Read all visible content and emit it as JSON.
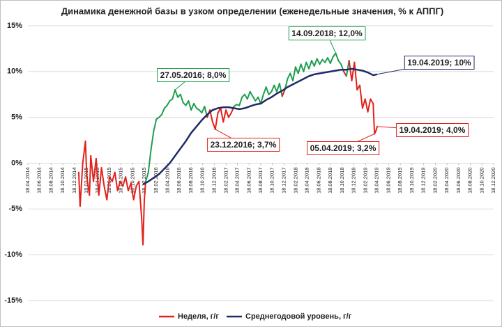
{
  "chart_data": {
    "type": "line",
    "title": "Динамика денежной базы в узком определении (еженедельные значения, % к АППГ)",
    "xlim": [
      "18.04.2014",
      "18.12.2020"
    ],
    "xticks": [
      "18.04.2014",
      "18.06.2014",
      "18.08.2014",
      "18.10.2014",
      "18.12.2014",
      "18.02.2015",
      "18.04.2015",
      "18.06.2015",
      "18.08.2015",
      "18.10.2015",
      "18.12.2015",
      "18.02.2016",
      "18.04.2016",
      "18.06.2016",
      "18.08.2016",
      "18.10.2016",
      "18.12.2016",
      "18.02.2017",
      "18.04.2017",
      "18.06.2017",
      "18.08.2017",
      "18.10.2017",
      "18.12.2017",
      "18.02.2018",
      "18.04.2018",
      "18.06.2018",
      "18.08.2018",
      "18.10.2018",
      "18.12.2018",
      "18.02.2019",
      "18.04.2019",
      "18.06.2019",
      "18.08.2019",
      "18.10.2019",
      "18.12.2019",
      "18.02.2020",
      "18.04.2020",
      "18.06.2020",
      "18.08.2020",
      "18.10.2020",
      "18.12.2020"
    ],
    "ylim": [
      -15,
      15
    ],
    "yticks": [
      {
        "value": -15,
        "label": "-15%"
      },
      {
        "value": -10,
        "label": "-10%"
      },
      {
        "value": -5,
        "label": "-5%"
      },
      {
        "value": 0,
        "label": "0%"
      },
      {
        "value": 5,
        "label": "5%"
      },
      {
        "value": 10,
        "label": "10%"
      },
      {
        "value": 15,
        "label": "15%"
      }
    ],
    "grid": true,
    "legend": "bottom",
    "series": [
      {
        "name": "Неделя, г/г",
        "color": "#e3211c",
        "above_average_color": "#1d9e4e",
        "x": [
          "09.01.2015",
          "16.01.2015",
          "30.01.2015",
          "13.02.2015",
          "20.02.2015",
          "06.03.2015",
          "13.03.2015",
          "27.03.2015",
          "10.04.2015",
          "24.04.2015",
          "08.05.2015",
          "22.05.2015",
          "05.06.2015",
          "19.06.2015",
          "03.07.2015",
          "17.07.2015",
          "31.07.2015",
          "14.08.2015",
          "28.08.2015",
          "11.09.2015",
          "25.09.2015",
          "09.10.2015",
          "23.10.2015",
          "06.11.2015",
          "20.11.2015",
          "04.12.2015",
          "11.12.2015",
          "18.12.2015",
          "25.12.2015",
          "08.01.2016",
          "22.01.2016",
          "05.02.2016",
          "19.02.2016",
          "04.03.2016",
          "18.03.2016",
          "01.04.2016",
          "15.04.2016",
          "29.04.2016",
          "13.05.2016",
          "27.05.2016",
          "10.06.2016",
          "24.06.2016",
          "08.07.2016",
          "22.07.2016",
          "05.08.2016",
          "19.08.2016",
          "02.09.2016",
          "16.09.2016",
          "30.09.2016",
          "14.10.2016",
          "28.10.2016",
          "11.11.2016",
          "25.11.2016",
          "09.12.2016",
          "23.12.2016",
          "06.01.2017",
          "20.01.2017",
          "03.02.2017",
          "17.02.2017",
          "03.03.2017",
          "17.03.2017",
          "31.03.2017",
          "14.04.2017",
          "28.04.2017",
          "12.05.2017",
          "26.05.2017",
          "09.06.2017",
          "23.06.2017",
          "07.07.2017",
          "21.07.2017",
          "04.08.2017",
          "18.08.2017",
          "01.09.2017",
          "15.09.2017",
          "29.09.2017",
          "13.10.2017",
          "27.10.2017",
          "10.11.2017",
          "24.11.2017",
          "08.12.2017",
          "22.12.2017",
          "05.01.2018",
          "19.01.2018",
          "02.02.2018",
          "16.02.2018",
          "02.03.2018",
          "16.03.2018",
          "30.03.2018",
          "13.04.2018",
          "27.04.2018",
          "11.05.2018",
          "25.05.2018",
          "08.06.2018",
          "22.06.2018",
          "06.07.2018",
          "20.07.2018",
          "03.08.2018",
          "17.08.2018",
          "31.08.2018",
          "14.09.2018",
          "28.09.2018",
          "12.10.2018",
          "26.10.2018",
          "09.11.2018",
          "23.11.2018",
          "07.12.2018",
          "21.12.2018",
          "04.01.2019",
          "18.01.2019",
          "01.02.2019",
          "15.02.2019",
          "01.03.2019",
          "15.03.2019",
          "29.03.2019",
          "05.04.2019",
          "12.04.2019",
          "19.04.2019"
        ],
        "values": [
          -1.0,
          -4.7,
          0.0,
          2.4,
          -1.5,
          -3.5,
          0.8,
          -2.0,
          0.5,
          -3.5,
          -0.5,
          -2.5,
          -4.0,
          -1.5,
          -2.0,
          -1.0,
          -3.0,
          -2.0,
          -2.5,
          -1.5,
          -3.0,
          -2.2,
          -4.0,
          -2.5,
          -2.0,
          -6.0,
          -8.9,
          -4.0,
          -2.0,
          -1.0,
          1.5,
          3.5,
          4.8,
          5.0,
          5.3,
          6.0,
          6.3,
          6.8,
          7.0,
          8.0,
          7.2,
          7.5,
          6.6,
          6.3,
          6.8,
          5.8,
          6.5,
          6.0,
          5.8,
          5.5,
          6.2,
          5.0,
          5.8,
          4.5,
          3.7,
          5.5,
          6.0,
          4.5,
          5.8,
          5.0,
          5.5,
          6.2,
          6.4,
          6.3,
          7.2,
          7.5,
          7.0,
          7.8,
          7.3,
          6.8,
          7.2,
          6.5,
          7.5,
          8.3,
          7.5,
          7.8,
          8.5,
          7.8,
          8.7,
          7.3,
          8.0,
          9.2,
          9.8,
          9.0,
          10.5,
          9.8,
          10.8,
          10.0,
          11.0,
          10.3,
          11.2,
          10.6,
          11.4,
          10.8,
          11.3,
          11.0,
          11.5,
          10.9,
          11.6,
          12.0,
          11.2,
          10.8,
          10.0,
          9.5,
          11.2,
          9.0,
          11.0,
          8.0,
          8.5,
          6.0,
          7.0,
          5.6,
          7.0,
          6.5,
          3.2,
          3.5,
          4.0
        ]
      },
      {
        "name": "Среднегодовой уровень, г/г",
        "color": "#1f2a66",
        "x": [
          "11.12.2015",
          "08.01.2016",
          "05.02.2016",
          "04.03.2016",
          "01.04.2016",
          "29.04.2016",
          "27.05.2016",
          "24.06.2016",
          "22.07.2016",
          "19.08.2016",
          "16.09.2016",
          "14.10.2016",
          "11.11.2016",
          "09.12.2016",
          "06.01.2017",
          "03.02.2017",
          "03.03.2017",
          "31.03.2017",
          "28.04.2017",
          "26.05.2017",
          "23.06.2017",
          "21.07.2017",
          "18.08.2017",
          "15.09.2017",
          "13.10.2017",
          "10.11.2017",
          "08.12.2017",
          "05.01.2018",
          "02.02.2018",
          "02.03.2018",
          "30.03.2018",
          "27.04.2018",
          "25.05.2018",
          "22.06.2018",
          "20.07.2018",
          "17.08.2018",
          "14.09.2018",
          "12.10.2018",
          "09.11.2018",
          "07.12.2018",
          "04.01.2019",
          "01.02.2019",
          "01.03.2019",
          "29.03.2019",
          "19.04.2019"
        ],
        "values": [
          -2.3,
          -2.0,
          -1.6,
          -1.2,
          -0.6,
          0.0,
          0.8,
          1.6,
          2.4,
          3.3,
          4.0,
          4.7,
          5.3,
          5.8,
          6.0,
          6.1,
          6.1,
          6.0,
          5.9,
          6.0,
          6.2,
          6.4,
          6.5,
          6.9,
          7.2,
          7.6,
          7.9,
          8.3,
          8.6,
          8.9,
          9.2,
          9.5,
          9.7,
          9.8,
          9.9,
          10.0,
          10.1,
          10.2,
          10.2,
          10.3,
          10.2,
          10.1,
          9.9,
          9.6,
          9.7
        ]
      }
    ],
    "annotations": [
      {
        "x": "27.05.2016",
        "y": 8.0,
        "label": "27.05.2016; 8,0%",
        "color": "#1d9e4e"
      },
      {
        "x": "23.12.2016",
        "y": 3.7,
        "label": "23.12.2016; 3,7%",
        "color": "#e3211c"
      },
      {
        "x": "14.09.2018",
        "y": 12.0,
        "label": "14.09.2018; 12,0%",
        "color": "#1d9e4e"
      },
      {
        "x": "19.04.2019",
        "y": 9.7,
        "label": "19.04.2019; 10%",
        "color": "#1f2a66"
      },
      {
        "x": "05.04.2019",
        "y": 3.2,
        "label": "05.04.2019; 3,2%",
        "color": "#e3211c"
      },
      {
        "x": "19.04.2019",
        "y": 4.0,
        "label": "19.04.2019; 4,0%",
        "color": "#e3211c"
      }
    ]
  }
}
